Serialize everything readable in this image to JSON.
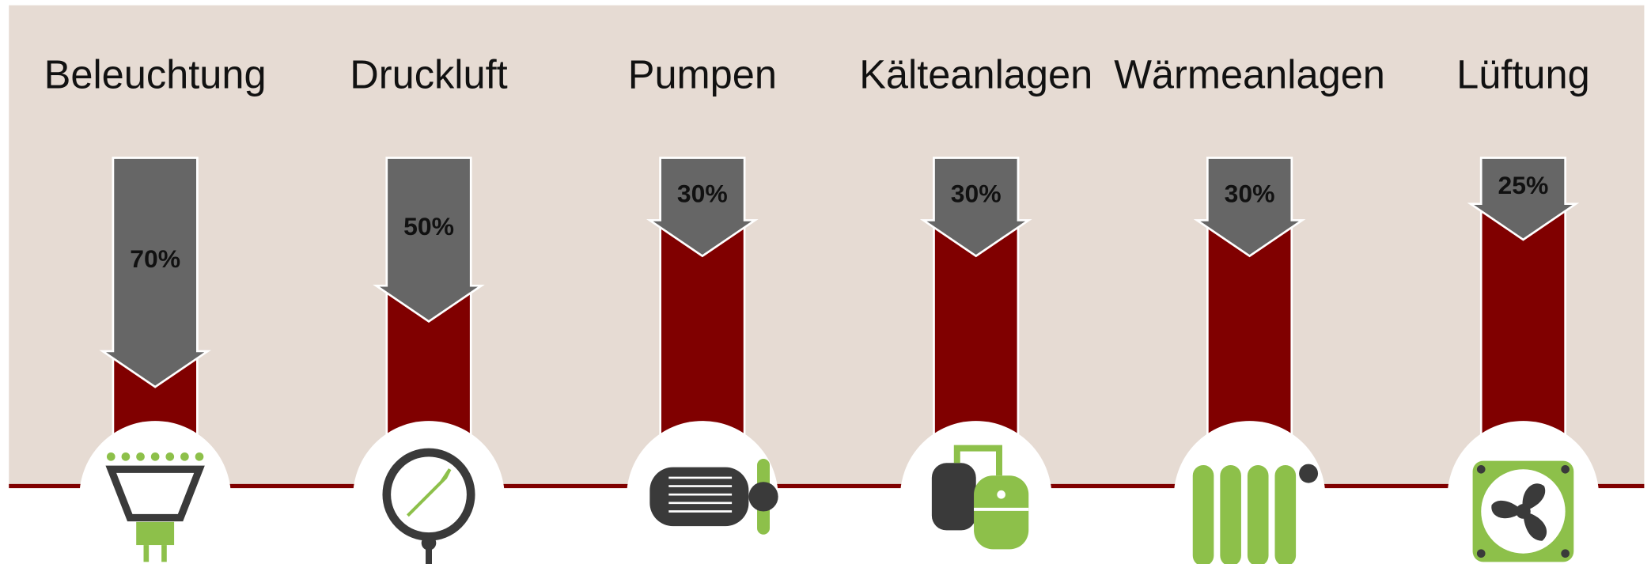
{
  "chart_data": {
    "type": "arrow-bar",
    "categories": [
      "Beleuchtung",
      "Druckluft",
      "Pumpen",
      "Kälteanlagen",
      "Wärmeanlagen",
      "Lüftung"
    ],
    "values": [
      70,
      50,
      30,
      30,
      30,
      25
    ],
    "value_labels": [
      "70%",
      "50%",
      "30%",
      "30%",
      "30%",
      "25%"
    ],
    "ylim": [
      0,
      100
    ],
    "color": "#666666",
    "bar_color": "#800000"
  }
}
